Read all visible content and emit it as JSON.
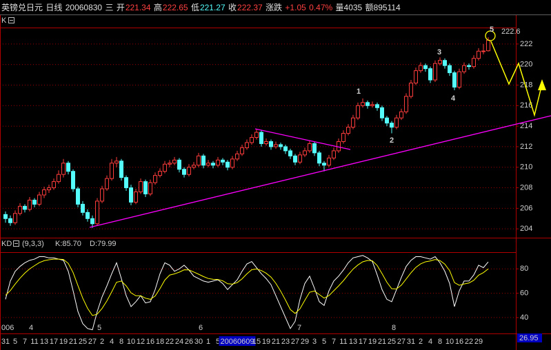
{
  "header": {
    "name": "英镑兑日元",
    "period": "日线",
    "date": "20060830",
    "weekday": "三",
    "open_label": "开",
    "open": "221.34",
    "high_label": "高",
    "high": "222.65",
    "low_label": "低",
    "low": "221.27",
    "close_label": "收",
    "close": "222.37",
    "change_label": "涨跌",
    "change": "+1.05",
    "change_pct": "0.47%",
    "volume": "量4035",
    "amount": "额895114"
  },
  "chart_data": [
    {
      "type": "candlestick",
      "label": "K",
      "up_color": "#ff3c3c",
      "down_color": "#54fcfc",
      "ylim": [
        203.14,
        223.6
      ],
      "yticks": [
        204,
        206,
        208,
        210,
        212,
        214,
        216,
        218,
        220,
        222
      ],
      "grid": true,
      "wave_labels": [
        "1",
        "2",
        "3",
        "4",
        "5"
      ],
      "price_label": "222.6",
      "month_labels": [
        "006",
        "4",
        "5",
        "6",
        "7",
        "8"
      ],
      "categories": [
        "31",
        null,
        "5",
        null,
        "7",
        null,
        "11",
        null,
        "13",
        null,
        "17",
        null,
        "19",
        null,
        "21",
        null,
        "25",
        null,
        "27",
        null,
        "2",
        null,
        "4",
        null,
        "8",
        null,
        "10",
        null,
        "12",
        null,
        "16",
        null,
        "18",
        null,
        "22",
        null,
        "24",
        null,
        "26",
        null,
        "30",
        null,
        "1",
        null,
        "5",
        null,
        null,
        null,
        "20060609",
        null,
        null,
        null,
        "15",
        null,
        "19",
        null,
        "21",
        null,
        "23",
        null,
        "27",
        null,
        "29",
        null,
        "3",
        null,
        "5",
        null,
        "7",
        null,
        "11",
        null,
        "13",
        null,
        "17",
        null,
        "19",
        null,
        "21",
        null,
        "25",
        null,
        "27",
        null,
        "31",
        null,
        "2",
        null,
        "4",
        null,
        "8",
        null,
        "10",
        null,
        "16",
        null,
        "22",
        null,
        "29",
        null,
        null
      ],
      "candles": [
        [
          205.4,
          205.7,
          204.6,
          205.0
        ],
        [
          205.0,
          205.3,
          204.3,
          204.6
        ],
        [
          204.6,
          205.8,
          204.4,
          205.5
        ],
        [
          205.5,
          206.5,
          205.3,
          206.2
        ],
        [
          206.2,
          206.4,
          205.6,
          205.9
        ],
        [
          205.9,
          207.1,
          205.7,
          206.8
        ],
        [
          206.8,
          207.0,
          206.1,
          206.4
        ],
        [
          206.4,
          207.6,
          206.2,
          207.3
        ],
        [
          207.3,
          208.1,
          207.0,
          207.8
        ],
        [
          207.8,
          208.3,
          207.5,
          208.0
        ],
        [
          208.0,
          208.9,
          207.8,
          208.6
        ],
        [
          208.6,
          209.7,
          208.4,
          209.3
        ],
        [
          209.3,
          210.8,
          209.0,
          210.4
        ],
        [
          210.4,
          210.6,
          209.3,
          209.6
        ],
        [
          209.6,
          209.8,
          207.6,
          207.9
        ],
        [
          207.9,
          208.1,
          206.1,
          206.4
        ],
        [
          206.4,
          206.7,
          205.3,
          205.6
        ],
        [
          205.6,
          205.9,
          204.7,
          205.0
        ],
        [
          205.0,
          205.3,
          204.1,
          204.5
        ],
        [
          204.5,
          207.0,
          204.3,
          206.7
        ],
        [
          206.7,
          208.2,
          206.5,
          207.9
        ],
        [
          207.9,
          209.2,
          207.7,
          208.9
        ],
        [
          208.9,
          210.8,
          208.7,
          210.4
        ],
        [
          210.4,
          211.0,
          210.0,
          210.6
        ],
        [
          210.6,
          210.8,
          208.7,
          209.0
        ],
        [
          209.0,
          209.2,
          207.7,
          208.0
        ],
        [
          208.0,
          208.3,
          206.3,
          206.6
        ],
        [
          206.6,
          207.9,
          206.4,
          207.6
        ],
        [
          207.6,
          208.9,
          207.4,
          208.6
        ],
        [
          208.6,
          208.8,
          207.1,
          207.4
        ],
        [
          207.4,
          208.8,
          207.2,
          208.5
        ],
        [
          208.5,
          209.5,
          208.3,
          209.2
        ],
        [
          209.2,
          209.9,
          209.0,
          209.6
        ],
        [
          209.6,
          210.6,
          209.4,
          210.3
        ],
        [
          210.3,
          210.7,
          210.0,
          210.4
        ],
        [
          210.4,
          211.0,
          210.2,
          210.7
        ],
        [
          210.7,
          210.9,
          209.5,
          209.8
        ],
        [
          209.8,
          210.0,
          209.0,
          209.3
        ],
        [
          209.3,
          210.3,
          209.1,
          210.0
        ],
        [
          210.0,
          210.5,
          209.8,
          210.2
        ],
        [
          210.2,
          211.4,
          210.0,
          211.1
        ],
        [
          211.1,
          211.3,
          209.9,
          210.2
        ],
        [
          210.2,
          210.7,
          210.0,
          210.4
        ],
        [
          210.4,
          210.6,
          209.9,
          210.2
        ],
        [
          210.2,
          211.0,
          210.0,
          210.7
        ],
        [
          210.7,
          210.9,
          210.2,
          210.5
        ],
        [
          210.5,
          210.7,
          209.7,
          210.0
        ],
        [
          210.0,
          211.1,
          209.8,
          210.8
        ],
        [
          210.8,
          211.6,
          210.6,
          211.3
        ],
        [
          211.3,
          212.2,
          211.1,
          211.9
        ],
        [
          211.9,
          212.7,
          211.7,
          212.4
        ],
        [
          212.4,
          213.2,
          212.2,
          212.9
        ],
        [
          212.9,
          213.7,
          212.7,
          213.4
        ],
        [
          213.4,
          213.6,
          212.0,
          212.3
        ],
        [
          212.3,
          212.8,
          212.1,
          212.5
        ],
        [
          212.5,
          212.7,
          211.7,
          212.0
        ],
        [
          212.0,
          212.5,
          211.8,
          212.2
        ],
        [
          212.2,
          212.4,
          211.7,
          212.0
        ],
        [
          212.0,
          212.2,
          211.3,
          211.6
        ],
        [
          211.6,
          211.8,
          210.8,
          211.1
        ],
        [
          211.1,
          211.3,
          210.2,
          210.5
        ],
        [
          210.5,
          211.5,
          210.3,
          211.2
        ],
        [
          211.2,
          211.9,
          211.0,
          211.6
        ],
        [
          211.6,
          212.6,
          211.4,
          212.3
        ],
        [
          212.3,
          212.5,
          211.1,
          211.4
        ],
        [
          211.4,
          211.6,
          210.1,
          210.4
        ],
        [
          210.4,
          210.6,
          209.6,
          210.2
        ],
        [
          210.2,
          211.2,
          210.0,
          210.9
        ],
        [
          210.9,
          211.9,
          210.7,
          211.6
        ],
        [
          211.6,
          212.8,
          211.4,
          212.5
        ],
        [
          212.5,
          213.6,
          212.3,
          213.3
        ],
        [
          213.3,
          214.2,
          213.1,
          213.9
        ],
        [
          213.9,
          215.1,
          213.7,
          214.8
        ],
        [
          214.8,
          216.3,
          214.6,
          216.0
        ],
        [
          216.0,
          216.7,
          215.8,
          216.3
        ],
        [
          216.3,
          216.5,
          215.7,
          216.0
        ],
        [
          216.0,
          216.4,
          215.8,
          216.1
        ],
        [
          216.1,
          216.3,
          215.5,
          215.8
        ],
        [
          215.8,
          216.0,
          214.5,
          214.8
        ],
        [
          214.8,
          215.0,
          214.0,
          214.3
        ],
        [
          214.3,
          214.5,
          213.3,
          213.9
        ],
        [
          213.9,
          215.1,
          213.7,
          214.8
        ],
        [
          214.8,
          215.7,
          214.6,
          215.4
        ],
        [
          215.4,
          217.2,
          215.2,
          216.9
        ],
        [
          216.9,
          218.5,
          216.7,
          218.2
        ],
        [
          218.2,
          219.7,
          218.0,
          219.4
        ],
        [
          219.4,
          220.2,
          219.2,
          219.9
        ],
        [
          219.9,
          220.1,
          219.3,
          219.6
        ],
        [
          219.6,
          219.8,
          218.2,
          218.5
        ],
        [
          218.5,
          220.4,
          218.3,
          220.1
        ],
        [
          220.1,
          220.7,
          219.9,
          220.4
        ],
        [
          220.4,
          220.6,
          219.6,
          219.9
        ],
        [
          219.9,
          220.1,
          218.9,
          219.2
        ],
        [
          219.2,
          219.4,
          217.5,
          217.8
        ],
        [
          217.8,
          219.6,
          217.6,
          219.3
        ],
        [
          219.3,
          220.2,
          219.1,
          219.9
        ],
        [
          219.9,
          220.1,
          219.5,
          219.8
        ],
        [
          219.8,
          220.9,
          219.6,
          220.6
        ],
        [
          220.6,
          221.6,
          220.4,
          221.3
        ],
        [
          221.3,
          222.0,
          221.0,
          221.32
        ],
        [
          221.34,
          222.65,
          221.27,
          222.37
        ]
      ]
    },
    {
      "type": "line",
      "label": "KD",
      "params": "(9,3,3)",
      "ylim": [
        26.95,
        93.7
      ],
      "yticks": [
        40,
        60,
        80
      ],
      "grid": true,
      "series": [
        {
          "name": "K:85.70",
          "color": "#ffffff",
          "values": [
            55,
            70,
            78,
            82,
            85,
            87,
            88,
            90,
            90,
            89,
            89,
            88,
            87,
            78,
            62,
            45,
            35,
            31,
            30,
            45,
            57,
            66,
            76,
            85,
            72,
            58,
            49,
            53,
            58,
            52,
            53,
            63,
            76,
            85,
            83,
            78,
            80,
            83,
            79,
            74,
            72,
            70,
            69,
            70,
            71,
            68,
            63,
            67,
            71,
            78,
            84,
            86,
            81,
            76,
            72,
            67,
            58,
            49,
            40,
            31,
            37,
            55,
            68,
            74,
            64,
            53,
            50,
            62,
            70,
            74,
            79,
            85,
            89,
            90,
            91,
            89,
            86,
            75,
            63,
            55,
            53,
            63,
            73,
            82,
            87,
            90,
            90,
            89,
            88,
            90,
            85,
            78,
            68,
            49,
            62,
            70,
            70,
            75,
            83,
            81,
            85.7
          ]
        },
        {
          "name": "D:79.99",
          "color": "#ffff00",
          "values": [
            58.3,
            62.2,
            67.5,
            72.3,
            76.5,
            80.0,
            82.6,
            85.1,
            86.7,
            87.5,
            88.0,
            88.0,
            87.7,
            84.5,
            77.0,
            66.3,
            55.9,
            47.6,
            41.7,
            42.8,
            47.5,
            53.7,
            61.1,
            69.0,
            70.0,
            66.0,
            60.3,
            57.9,
            57.9,
            55.9,
            55.0,
            57.7,
            63.8,
            70.8,
            74.9,
            75.9,
            77.3,
            79.2,
            79.1,
            77.4,
            75.6,
            73.7,
            72.1,
            71.4,
            71.3,
            70.2,
            67.8,
            67.5,
            68.7,
            71.8,
            75.9,
            79.3,
            79.9,
            78.6,
            76.4,
            73.2,
            68.1,
            61.7,
            54.4,
            46.6,
            43.4,
            47.2,
            54.2,
            60.8,
            61.8,
            58.9,
            56.0,
            58.0,
            62.0,
            66.0,
            70.3,
            75.2,
            79.8,
            83.2,
            85.8,
            86.9,
            86.6,
            82.7,
            76.1,
            69.0,
            63.7,
            63.5,
            66.6,
            71.7,
            76.8,
            81.2,
            84.1,
            85.8,
            86.5,
            87.7,
            86.8,
            83.9,
            78.6,
            68.7,
            66.5,
            67.6,
            68.4,
            70.6,
            74.8,
            76.9,
            79.99
          ]
        }
      ]
    }
  ]
}
